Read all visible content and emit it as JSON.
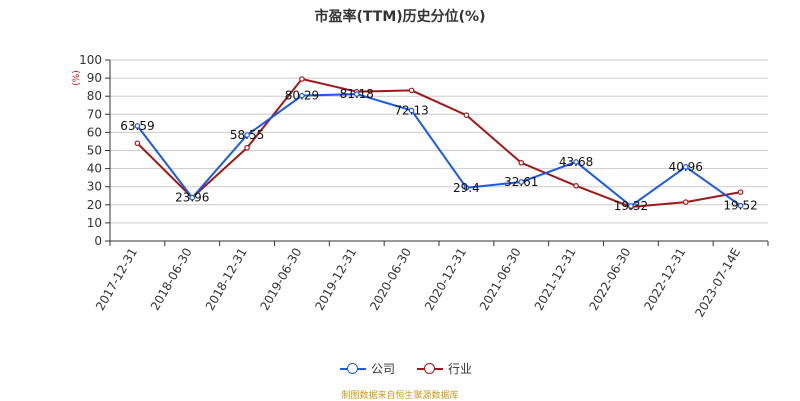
{
  "chart_data": {
    "type": "line",
    "title": "市盈率(TTM)历史分位(%)",
    "ylabel": "(%)",
    "xlabel": "",
    "ylim": [
      0,
      100
    ],
    "yticks": [
      0,
      10,
      20,
      30,
      40,
      50,
      60,
      70,
      80,
      90,
      100
    ],
    "categories": [
      "2017-12-31",
      "2018-06-30",
      "2018-12-31",
      "2019-06-30",
      "2019-12-31",
      "2020-06-30",
      "2020-12-31",
      "2021-06-30",
      "2021-12-31",
      "2022-06-30",
      "2022-12-31",
      "2023-07-14E"
    ],
    "grid": true,
    "legend_position": "bottom",
    "series": [
      {
        "name": "公司",
        "color": "#1a5ae6",
        "values": [
          63.59,
          23.96,
          58.55,
          80.29,
          81.18,
          72.13,
          29.4,
          32.61,
          43.68,
          19.32,
          40.96,
          19.52
        ],
        "labels": [
          "63.59",
          "23.96",
          "58.55",
          "80.29",
          "81.18",
          "72.13",
          "29.4",
          "32.61",
          "43.68",
          "19.32",
          "40.96",
          "19.52"
        ]
      },
      {
        "name": "行业",
        "color": "#a01818",
        "values": [
          54.0,
          24.0,
          51.5,
          89.5,
          82.5,
          83.2,
          69.5,
          43.2,
          30.5,
          18.8,
          21.5,
          27.0
        ]
      }
    ]
  },
  "source_note": "制图数据来自恒生聚源数据库"
}
